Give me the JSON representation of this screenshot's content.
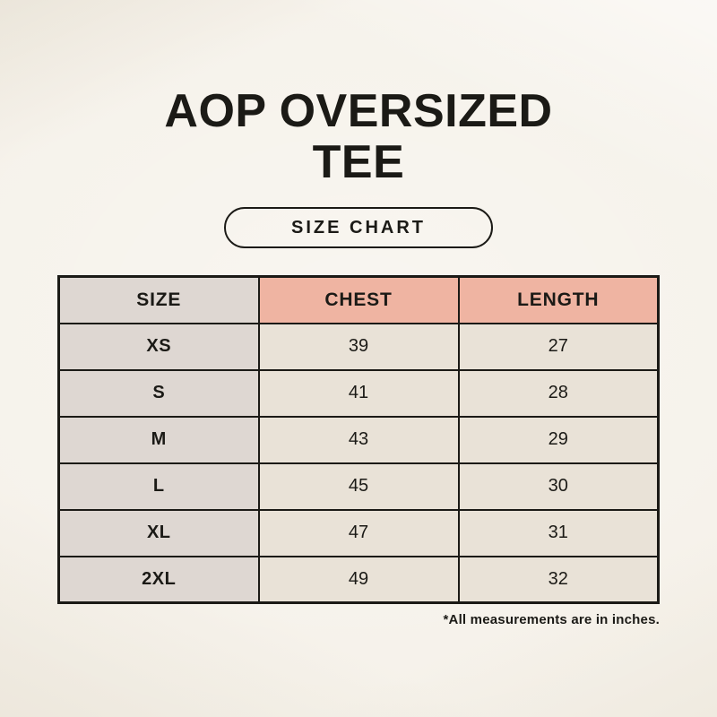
{
  "header": {
    "title_line1": "AOP OVERSIZED",
    "title_line2": "TEE",
    "badge_label": "SIZE CHART"
  },
  "footnote": "*All measurements are in inches.",
  "chart_data": {
    "type": "table",
    "title": "AOP OVERSIZED TEE size chart",
    "columns": [
      "SIZE",
      "CHEST",
      "LENGTH"
    ],
    "units": "inches",
    "rows": [
      {
        "size": "XS",
        "chest": "39",
        "length": "27"
      },
      {
        "size": "S",
        "chest": "41",
        "length": "28"
      },
      {
        "size": "M",
        "chest": "43",
        "length": "29"
      },
      {
        "size": "L",
        "chest": "45",
        "length": "30"
      },
      {
        "size": "XL",
        "chest": "47",
        "length": "31"
      },
      {
        "size": "2XL",
        "chest": "49",
        "length": "32"
      }
    ]
  },
  "colors": {
    "background": "#f5f1e9",
    "size_col_grey": "#ded7d2",
    "header_pink": "#efb4a2",
    "cell_cream": "#e9e2d7",
    "border_dark": "#1b1a16",
    "text_dark": "#1b1a16"
  }
}
